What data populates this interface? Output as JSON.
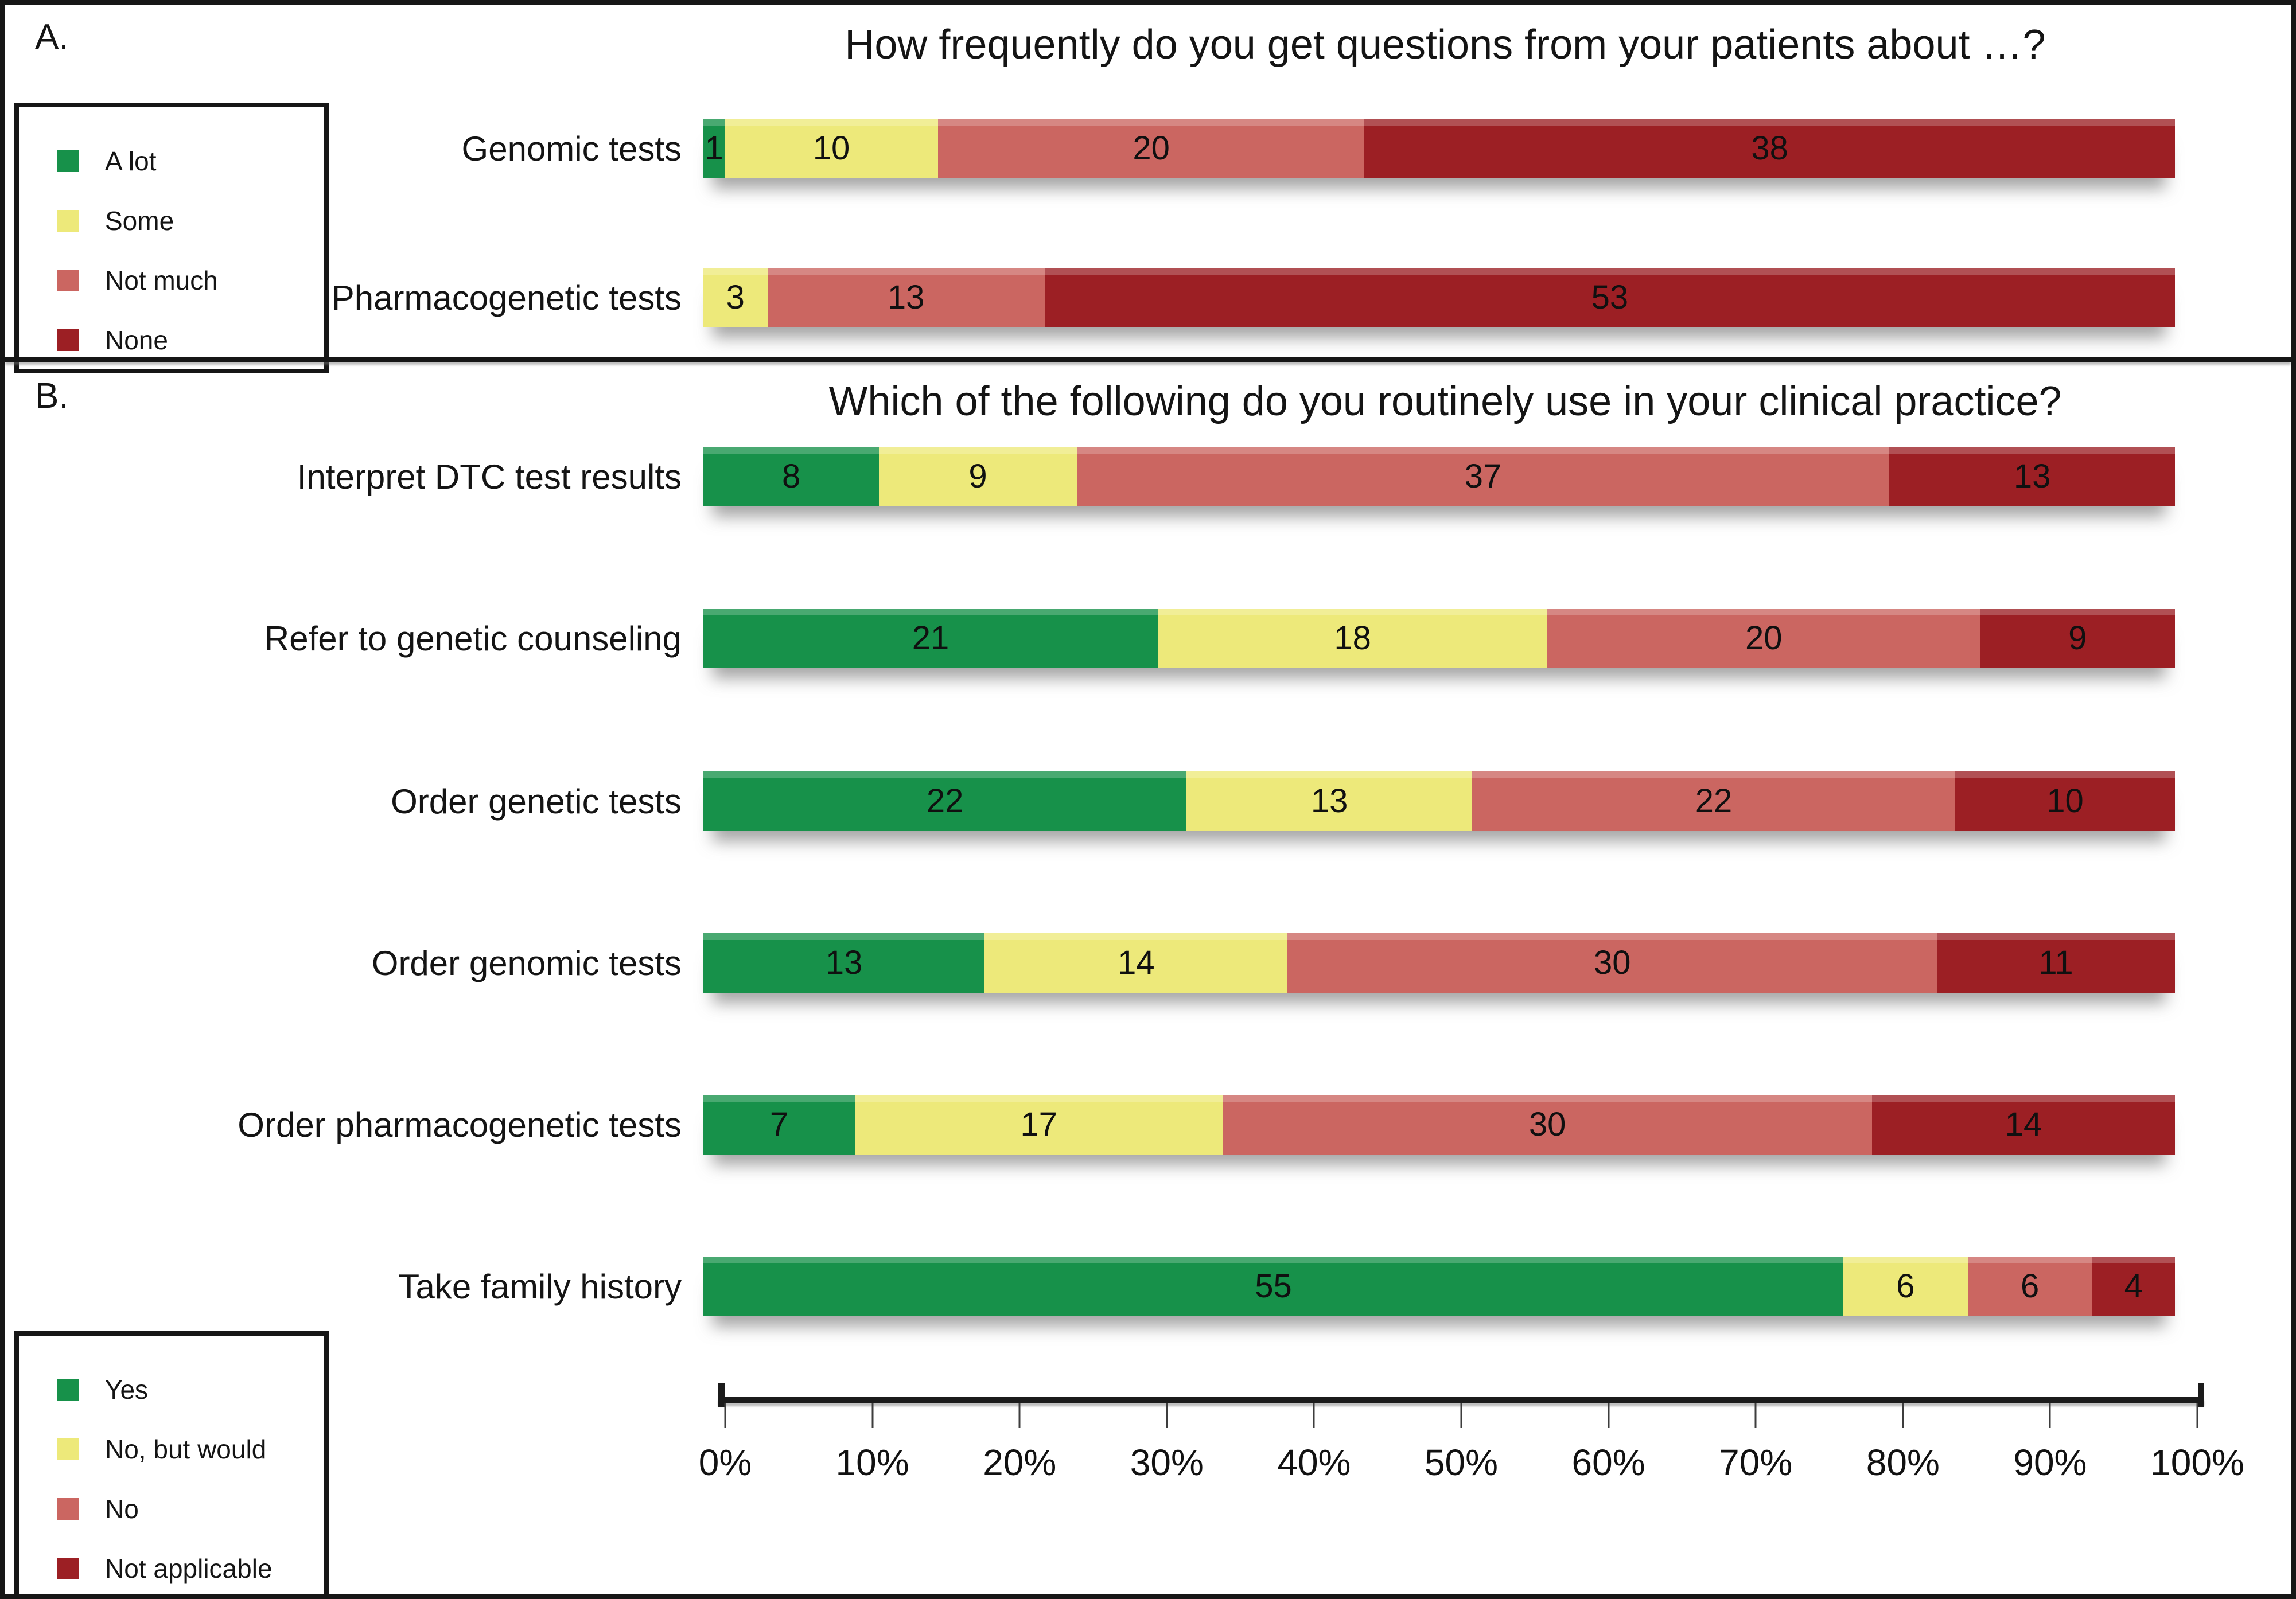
{
  "figure": {
    "panel_a_label": "A.",
    "panel_b_label": "B."
  },
  "colors": {
    "green": "#17914A",
    "yellow": "#EDE97A",
    "salmon": "#CB6661",
    "dark_red": "#9C1F24",
    "ink": "#161616"
  },
  "chart_data": [
    {
      "type": "bar",
      "stacked": true,
      "orientation": "horizontal",
      "normalized_to_100pct": true,
      "value_labels_shown": true,
      "legend_position": "top-left",
      "title": "How frequently do you get questions from your patients about …?",
      "categories": [
        "Genomic tests",
        "Pharmacogenetic tests"
      ],
      "series": [
        {
          "name": "A lot",
          "color": "#17914A",
          "values": [
            1,
            0
          ]
        },
        {
          "name": "Some",
          "color": "#EDE97A",
          "values": [
            10,
            3
          ]
        },
        {
          "name": "Not much",
          "color": "#CB6661",
          "values": [
            20,
            13
          ]
        },
        {
          "name": "None",
          "color": "#9C1F24",
          "values": [
            38,
            53
          ]
        }
      ],
      "x_axis": {
        "min": 0,
        "max": 100,
        "unit": "percent",
        "shown": false
      }
    },
    {
      "type": "bar",
      "stacked": true,
      "orientation": "horizontal",
      "normalized_to_100pct": true,
      "value_labels_shown": true,
      "legend_position": "bottom-left",
      "title": "Which of the following do you routinely use in your clinical practice?",
      "categories": [
        "Interpret DTC test results",
        "Refer to genetic counseling",
        "Order genetic tests",
        "Order genomic tests",
        "Order pharmacogenetic tests",
        "Take family history"
      ],
      "series": [
        {
          "name": "Yes",
          "color": "#17914A",
          "values": [
            8,
            21,
            22,
            13,
            7,
            55
          ]
        },
        {
          "name": "No, but would",
          "color": "#EDE97A",
          "values": [
            9,
            18,
            13,
            14,
            17,
            6
          ]
        },
        {
          "name": "No",
          "color": "#CB6661",
          "values": [
            37,
            20,
            22,
            30,
            30,
            6
          ]
        },
        {
          "name": "Not applicable",
          "color": "#9C1F24",
          "values": [
            13,
            9,
            10,
            11,
            14,
            4
          ]
        }
      ],
      "x_axis": {
        "min": 0,
        "max": 100,
        "tick_step": 10,
        "unit": "percent",
        "shown": true,
        "tick_labels": [
          "0%",
          "10%",
          "20%",
          "30%",
          "40%",
          "50%",
          "60%",
          "70%",
          "80%",
          "90%",
          "100%"
        ]
      }
    }
  ]
}
